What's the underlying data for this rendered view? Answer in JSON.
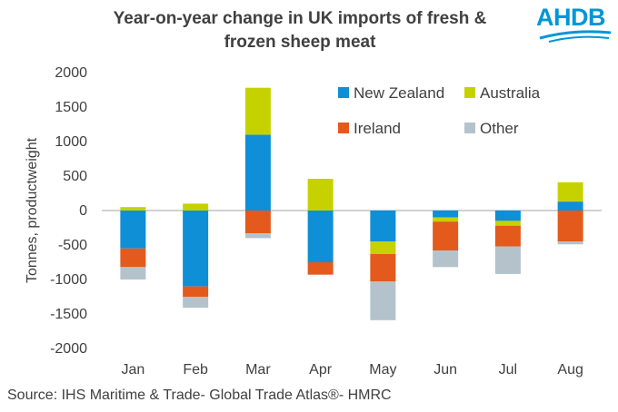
{
  "header": {
    "title_line1": "Year-on-year change in UK imports of fresh &",
    "title_line2": "frozen sheep meat",
    "logo_text": "AHDB"
  },
  "source": "Source: IHS Maritime & Trade- Global Trade Atlas®- HMRC",
  "chart_data": {
    "type": "bar",
    "stacked": true,
    "title": "Year-on-year change in UK imports of fresh & frozen sheep meat",
    "xlabel": "",
    "ylabel": "Tonnes, productweight",
    "ylim": [
      -2000,
      2000
    ],
    "yticks": [
      2000,
      1500,
      1000,
      500,
      0,
      -500,
      -1000,
      -1500,
      -2000
    ],
    "categories": [
      "Jan",
      "Feb",
      "Mar",
      "Apr",
      "May",
      "Jun",
      "Jul",
      "Aug"
    ],
    "legend_position": "top-right",
    "series": [
      {
        "name": "New Zealand",
        "color": "#0f8fd6",
        "values": [
          -550,
          -1100,
          1100,
          -750,
          -450,
          -100,
          -150,
          130
        ]
      },
      {
        "name": "Australia",
        "color": "#c6d200",
        "values": [
          50,
          100,
          680,
          460,
          -180,
          -60,
          -70,
          280
        ]
      },
      {
        "name": "Ireland",
        "color": "#e35a1c",
        "values": [
          -270,
          -150,
          -330,
          -180,
          -400,
          -420,
          -300,
          -450
        ]
      },
      {
        "name": "Other",
        "color": "#b4c3cb",
        "values": [
          -180,
          -160,
          -70,
          0,
          -560,
          -240,
          -400,
          -40
        ]
      }
    ]
  }
}
